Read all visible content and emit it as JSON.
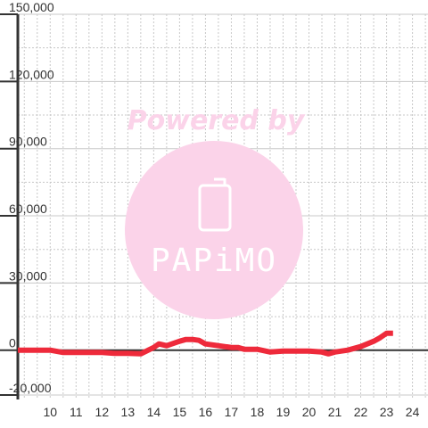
{
  "chart_data": {
    "type": "line",
    "title": "",
    "xlabel": "",
    "ylabel": "",
    "xlim": [
      8.75,
      24.6
    ],
    "ylim": [
      -22000,
      150000
    ],
    "x_ticks": [
      10,
      11,
      12,
      13,
      14,
      15,
      16,
      17,
      18,
      19,
      20,
      21,
      22,
      23,
      24
    ],
    "y_ticks": [
      -20000,
      0,
      30000,
      60000,
      90000,
      120000,
      150000
    ],
    "y_tick_labels": [
      "-20,000",
      "0",
      "30,000",
      "60,000",
      "90,000",
      "120,000",
      "150,000"
    ],
    "grid": true,
    "series": [
      {
        "color": "#ee2a3b",
        "x": [
          8.75,
          9.0,
          9.5,
          10.0,
          10.5,
          11.0,
          11.5,
          12.0,
          12.5,
          13.0,
          13.5,
          14.0,
          14.2,
          14.5,
          15.0,
          15.25,
          15.5,
          15.75,
          16.0,
          16.5,
          17.0,
          17.25,
          17.5,
          18.0,
          18.5,
          19.0,
          19.5,
          20.0,
          20.5,
          20.75,
          21.0,
          21.5,
          22.0,
          22.5,
          22.75,
          23.0,
          23.25
        ],
        "y": [
          0,
          0,
          0,
          0,
          -1000,
          -1000,
          -1000,
          -1000,
          -1400,
          -1400,
          -1600,
          1200,
          2800,
          2000,
          4000,
          4800,
          4800,
          4400,
          2800,
          2000,
          1200,
          1200,
          400,
          400,
          -800,
          -400,
          -400,
          -400,
          -800,
          -1600,
          -800,
          0,
          1600,
          4000,
          5600,
          7600,
          7600
        ]
      }
    ]
  },
  "watermark": {
    "text": "Powered by",
    "logo_text": "PAPiMO",
    "circle_color": "#fbd3e9"
  }
}
